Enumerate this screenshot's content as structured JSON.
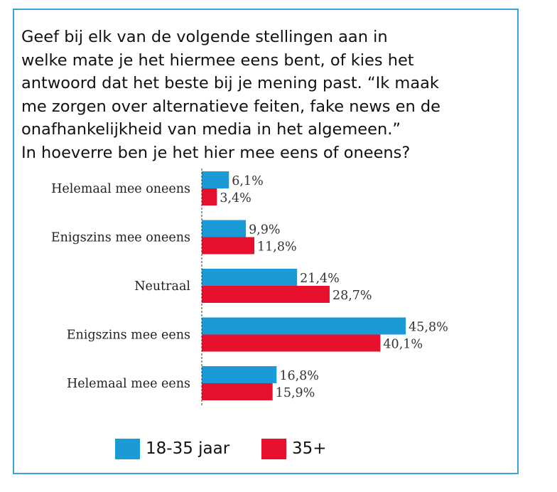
{
  "question": "Geef bij elk van de volgende stellingen aan in\nwelke mate je het hiermee eens bent, of kies het\nantwoord dat het beste bij je mening past. “Ik maak\nme zorgen over alternatieve feiten, fake news en de\nonafhankelijkheid  van media in het algemeen.”\nIn hoeverre ben je het hier mee eens of oneens?",
  "chart_data": {
    "type": "bar",
    "orientation": "horizontal",
    "categories": [
      "Helemaal mee oneens",
      "Enigszins mee oneens",
      "Neutraal",
      "Enigszins mee eens",
      "Helemaal mee eens"
    ],
    "series": [
      {
        "name": "18-35 jaar",
        "color": "#1a9bd7",
        "values": [
          6.1,
          9.9,
          21.4,
          45.8,
          16.8
        ],
        "labels": [
          "6,1%",
          "9,9%",
          "21,4%",
          "45,8%",
          "16,8%"
        ]
      },
      {
        "name": "35+",
        "color": "#e8112d",
        "values": [
          3.4,
          11.8,
          28.7,
          40.1,
          15.9
        ],
        "labels": [
          "3,4%",
          "11,8%",
          "28,7%",
          "40,1%",
          "15,9%"
        ]
      }
    ],
    "xlim": [
      0,
      50
    ],
    "legend_position": "bottom"
  },
  "colors": {
    "frame": "#3aa3d8",
    "axis": "#333333"
  }
}
